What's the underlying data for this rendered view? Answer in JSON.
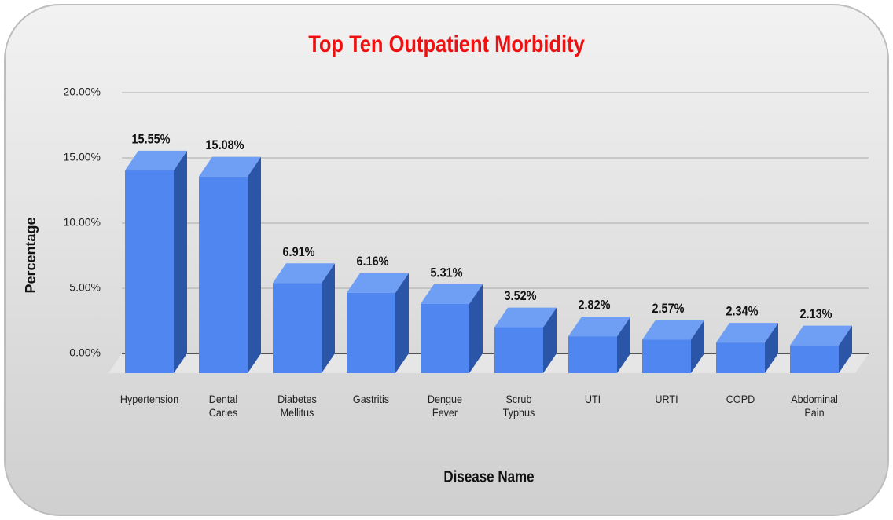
{
  "chart_data": {
    "type": "bar",
    "title": "Top Ten Outpatient Morbidity",
    "x_label": "Disease Name",
    "y_label": "Percentage",
    "categories": [
      "Hypertension",
      "Dental Caries",
      "Diabetes Mellitus",
      "Gastritis",
      "Dengue Fever",
      "Scrub Typhus",
      "UTI",
      "URTI",
      "COPD",
      "Abdominal Pain"
    ],
    "values": [
      15.55,
      15.08,
      6.91,
      6.16,
      5.31,
      3.52,
      2.82,
      2.57,
      2.34,
      2.13
    ],
    "value_labels": [
      "15.55%",
      "15.08%",
      "6.91%",
      "6.16%",
      "5.31%",
      "3.52%",
      "2.82%",
      "2.57%",
      "2.34%",
      "2.13%"
    ],
    "color": "#4f86f0",
    "ylim": [
      0,
      20
    ],
    "yticks": [
      {
        "value": 0,
        "label": "0.00%"
      },
      {
        "value": 5,
        "label": "5.00%"
      },
      {
        "value": 10,
        "label": "10.00%"
      },
      {
        "value": 15,
        "label": "15.00%"
      },
      {
        "value": 20,
        "label": "20.00%"
      }
    ],
    "grid": true
  }
}
